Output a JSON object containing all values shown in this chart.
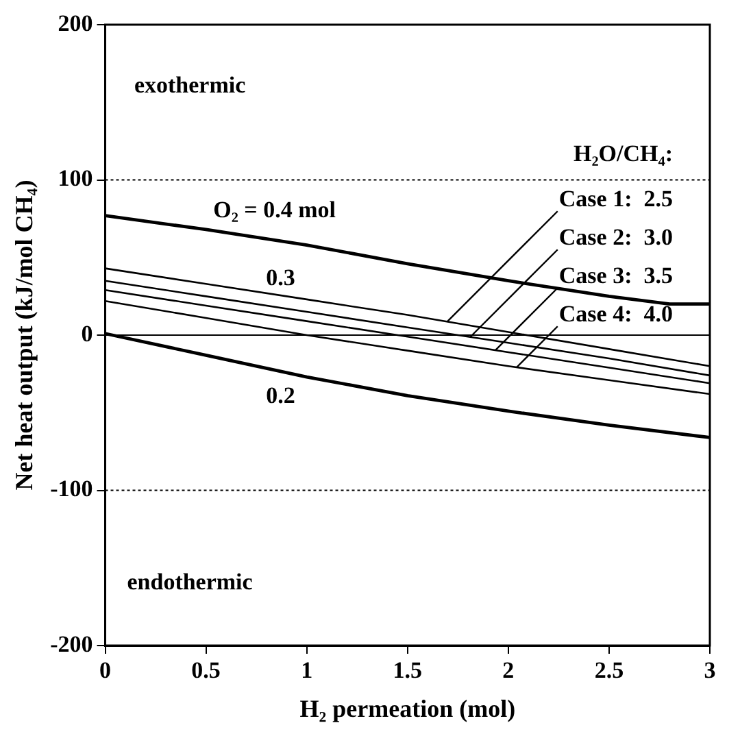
{
  "chart_data": {
    "type": "line",
    "xlabel": "H₂ permeation (mol)",
    "ylabel": "Net heat output (kJ/mol CH₄)",
    "x": [
      0,
      0.5,
      1,
      1.5,
      2,
      2.5,
      3
    ],
    "xlim": [
      0,
      3
    ],
    "xticks": [
      0,
      0.5,
      1,
      1.5,
      2,
      2.5,
      3
    ],
    "ylim": [
      -200,
      200
    ],
    "yticks": [
      -200,
      -100,
      0,
      100,
      200
    ],
    "grid": false,
    "legend": "top right",
    "legend_title": "H₂O/CH₄:",
    "marker": "none",
    "line_style": "solid",
    "series": [
      {
        "color": "#000000",
        "x": [
          0,
          0.5,
          1,
          1.5,
          2,
          2.5,
          2.8,
          3
        ],
        "values": [
          77,
          68,
          58,
          46,
          35,
          25,
          20,
          20
        ]
      },
      {
        "name": "Case 1:  2.5",
        "color": "#000000",
        "values": [
          43,
          33,
          23,
          13,
          2,
          -9,
          -20
        ]
      },
      {
        "name": "Case 2:  3.0",
        "color": "#000000",
        "values": [
          35,
          25,
          15,
          5,
          -5,
          -15,
          -26
        ]
      },
      {
        "name": "Case 3:  3.5",
        "color": "#000000",
        "values": [
          29,
          19,
          9,
          -1,
          -11,
          -21,
          -31
        ]
      },
      {
        "name": "Case 4:  4.0",
        "color": "#000000",
        "values": [
          22,
          11,
          0,
          -10,
          -20,
          -29,
          -38
        ]
      },
      {
        "color": "#000000",
        "values": [
          1,
          -13,
          -27,
          -39,
          -49,
          -58,
          -66
        ]
      }
    ],
    "ref_lines": [
      {
        "axis": "y",
        "value": 100,
        "color": "#000000",
        "line_style": "dotted"
      },
      {
        "axis": "y",
        "value": 0,
        "color": "#000000",
        "line_style": "solid"
      },
      {
        "axis": "y",
        "value": -100,
        "color": "#000000",
        "line_style": "dotted"
      }
    ],
    "annotations": [
      "exothermic",
      "endothermic",
      "O₂ = 0.4 mol",
      "0.3",
      "0.2"
    ]
  }
}
